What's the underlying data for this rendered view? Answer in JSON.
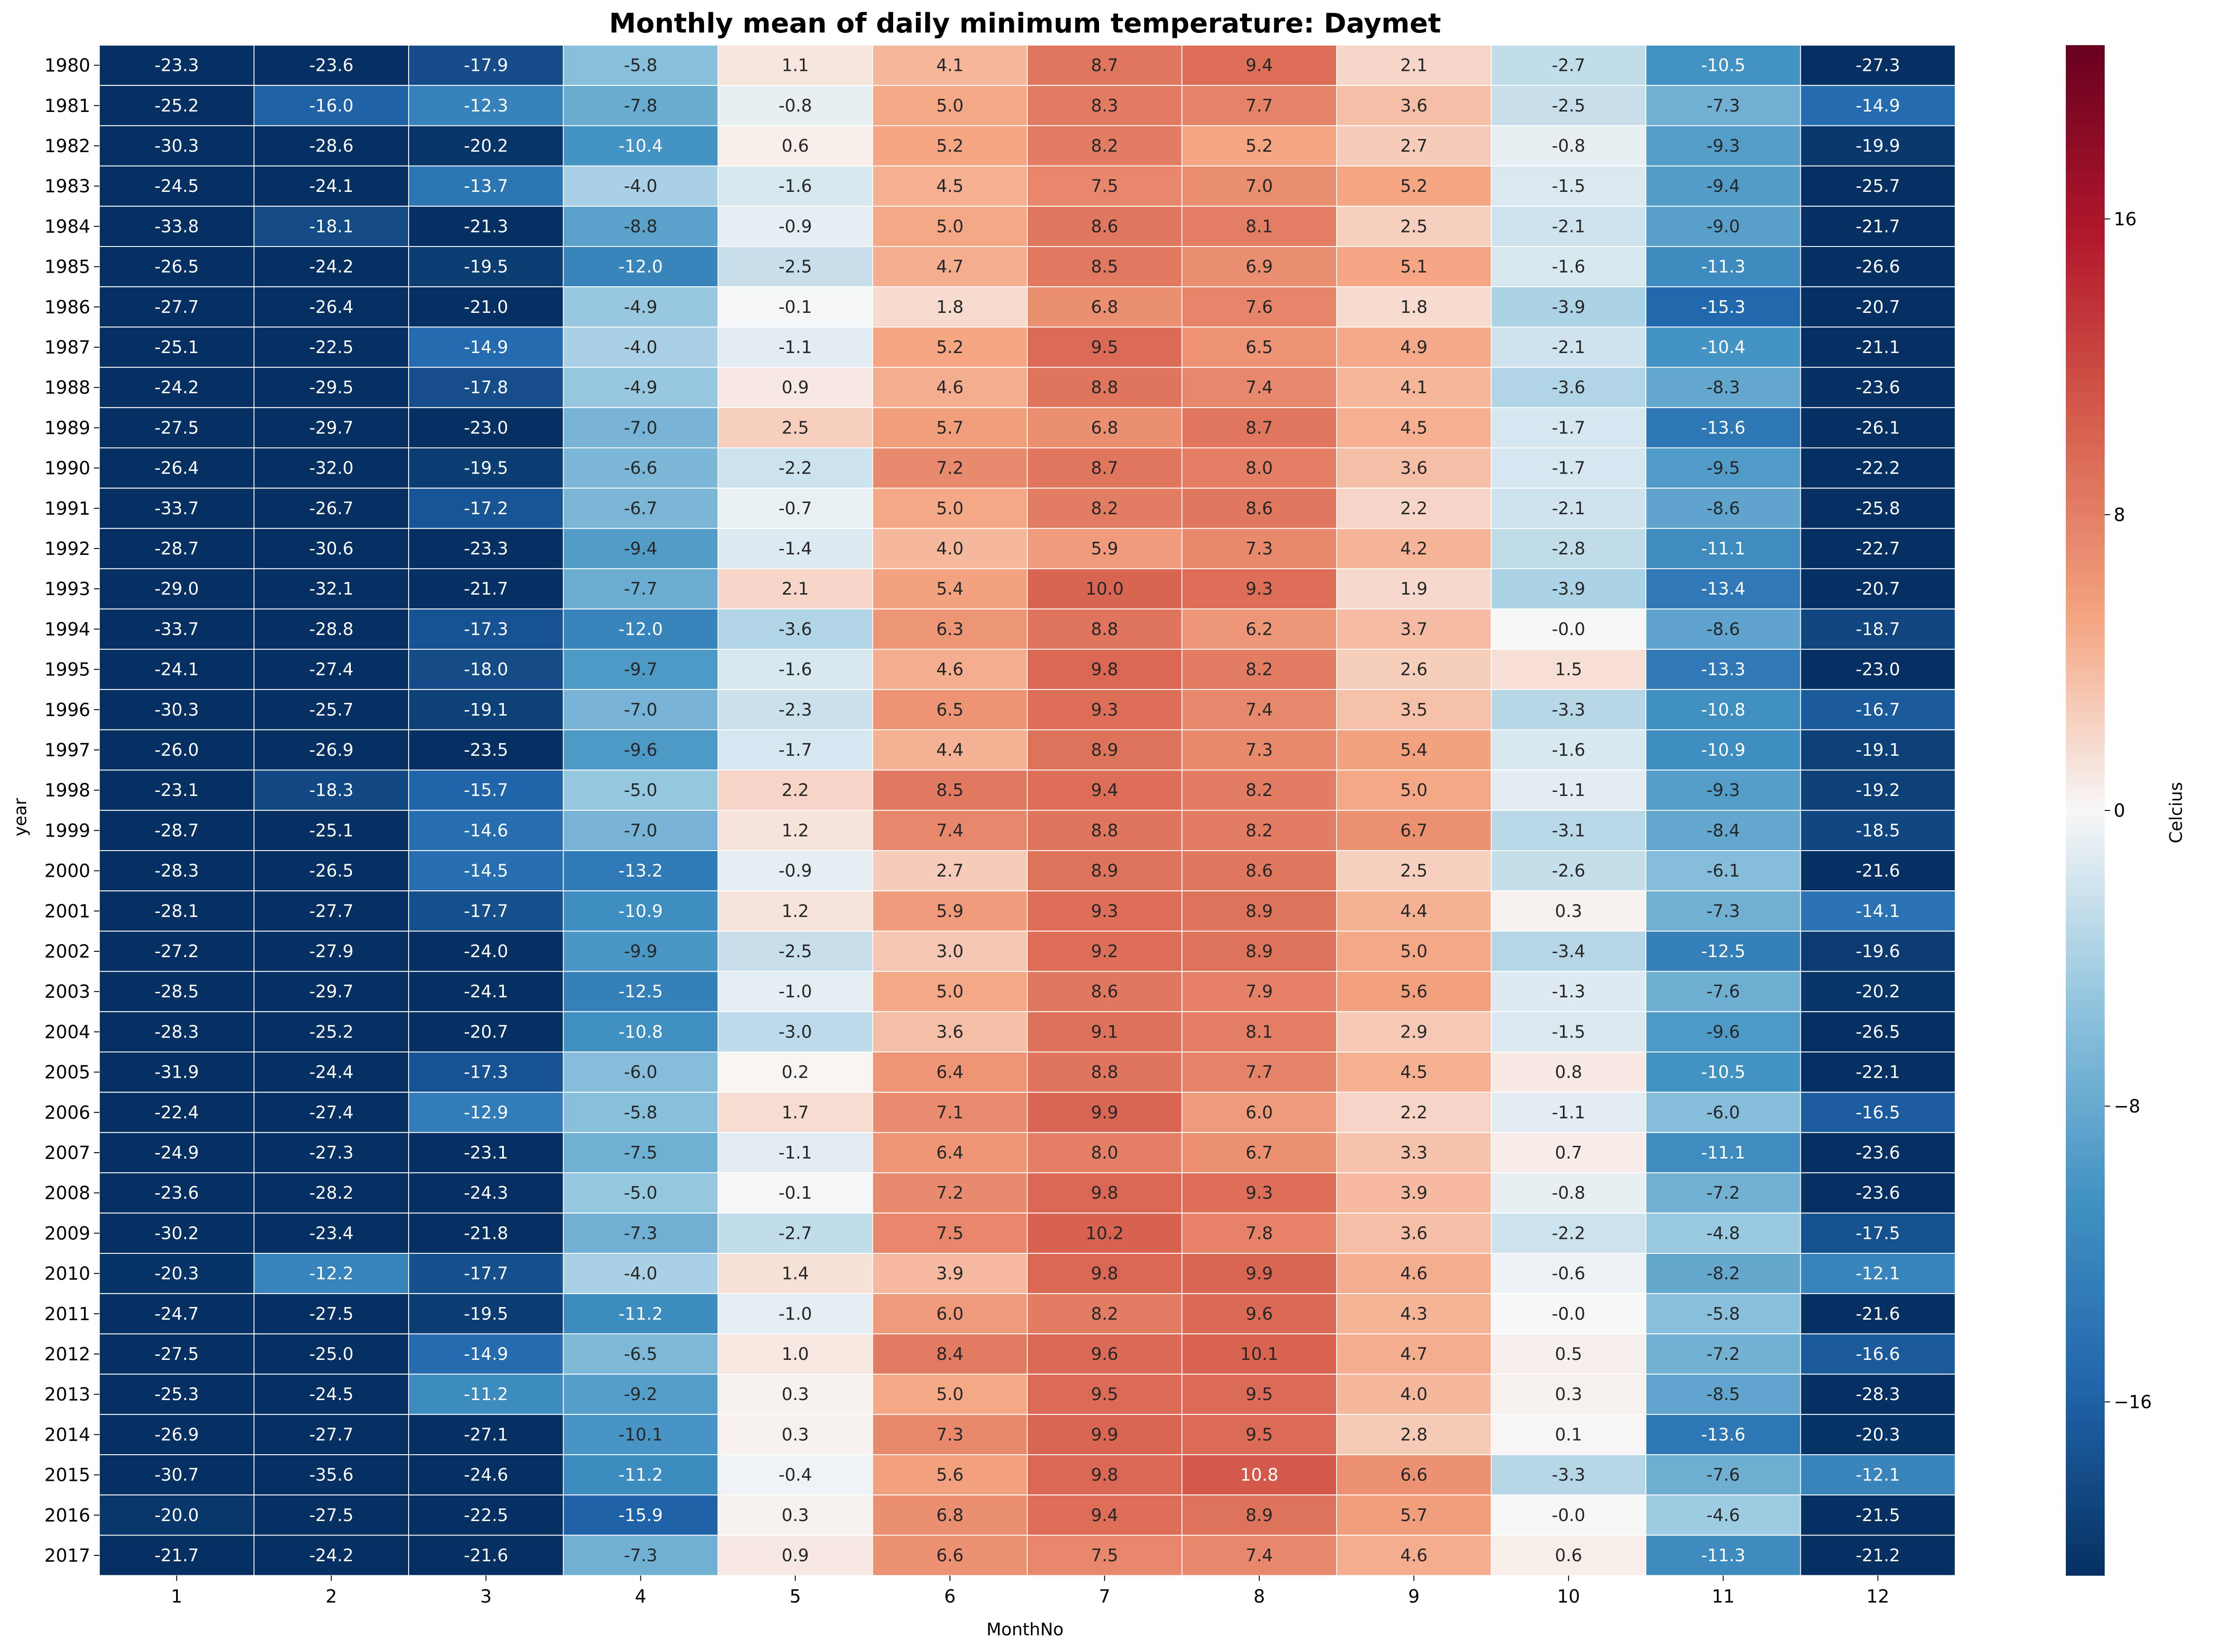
{
  "chart_data": {
    "type": "heatmap",
    "title": "Monthly mean of daily minimum temperature: Daymet",
    "xlabel": "MonthNo",
    "ylabel": "year",
    "colorbar_label": "Celcius",
    "colormap": "RdBu_r",
    "vmin": -20.7,
    "vmax": 20.7,
    "colorbar_ticks": [
      -16,
      -8,
      0,
      8,
      16
    ],
    "x_categories": [
      "1",
      "2",
      "3",
      "4",
      "5",
      "6",
      "7",
      "8",
      "9",
      "10",
      "11",
      "12"
    ],
    "y_categories": [
      "1980",
      "1981",
      "1982",
      "1983",
      "1984",
      "1985",
      "1986",
      "1987",
      "1988",
      "1989",
      "1990",
      "1991",
      "1992",
      "1993",
      "1994",
      "1995",
      "1996",
      "1997",
      "1998",
      "1999",
      "2000",
      "2001",
      "2002",
      "2003",
      "2004",
      "2005",
      "2006",
      "2007",
      "2008",
      "2009",
      "2010",
      "2011",
      "2012",
      "2013",
      "2014",
      "2015",
      "2016",
      "2017"
    ],
    "values": [
      [
        "-23.3",
        "-23.6",
        "-17.9",
        "-5.8",
        "1.1",
        "4.1",
        "8.7",
        "9.4",
        "2.1",
        "-2.7",
        "-10.5",
        "-27.3"
      ],
      [
        "-25.2",
        "-16.0",
        "-12.3",
        "-7.8",
        "-0.8",
        "5.0",
        "8.3",
        "7.7",
        "3.6",
        "-2.5",
        "-7.3",
        "-14.9"
      ],
      [
        "-30.3",
        "-28.6",
        "-20.2",
        "-10.4",
        "0.6",
        "5.2",
        "8.2",
        "5.2",
        "2.7",
        "-0.8",
        "-9.3",
        "-19.9"
      ],
      [
        "-24.5",
        "-24.1",
        "-13.7",
        "-4.0",
        "-1.6",
        "4.5",
        "7.5",
        "7.0",
        "5.2",
        "-1.5",
        "-9.4",
        "-25.7"
      ],
      [
        "-33.8",
        "-18.1",
        "-21.3",
        "-8.8",
        "-0.9",
        "5.0",
        "8.6",
        "8.1",
        "2.5",
        "-2.1",
        "-9.0",
        "-21.7"
      ],
      [
        "-26.5",
        "-24.2",
        "-19.5",
        "-12.0",
        "-2.5",
        "4.7",
        "8.5",
        "6.9",
        "5.1",
        "-1.6",
        "-11.3",
        "-26.6"
      ],
      [
        "-27.7",
        "-26.4",
        "-21.0",
        "-4.9",
        "-0.1",
        "1.8",
        "6.8",
        "7.6",
        "1.8",
        "-3.9",
        "-15.3",
        "-20.7"
      ],
      [
        "-25.1",
        "-22.5",
        "-14.9",
        "-4.0",
        "-1.1",
        "5.2",
        "9.5",
        "6.5",
        "4.9",
        "-2.1",
        "-10.4",
        "-21.1"
      ],
      [
        "-24.2",
        "-29.5",
        "-17.8",
        "-4.9",
        "0.9",
        "4.6",
        "8.8",
        "7.4",
        "4.1",
        "-3.6",
        "-8.3",
        "-23.6"
      ],
      [
        "-27.5",
        "-29.7",
        "-23.0",
        "-7.0",
        "2.5",
        "5.7",
        "6.8",
        "8.7",
        "4.5",
        "-1.7",
        "-13.6",
        "-26.1"
      ],
      [
        "-26.4",
        "-32.0",
        "-19.5",
        "-6.6",
        "-2.2",
        "7.2",
        "8.7",
        "8.0",
        "3.6",
        "-1.7",
        "-9.5",
        "-22.2"
      ],
      [
        "-33.7",
        "-26.7",
        "-17.2",
        "-6.7",
        "-0.7",
        "5.0",
        "8.2",
        "8.6",
        "2.2",
        "-2.1",
        "-8.6",
        "-25.8"
      ],
      [
        "-28.7",
        "-30.6",
        "-23.3",
        "-9.4",
        "-1.4",
        "4.0",
        "5.9",
        "7.3",
        "4.2",
        "-2.8",
        "-11.1",
        "-22.7"
      ],
      [
        "-29.0",
        "-32.1",
        "-21.7",
        "-7.7",
        "2.1",
        "5.4",
        "10.0",
        "9.3",
        "1.9",
        "-3.9",
        "-13.4",
        "-20.7"
      ],
      [
        "-33.7",
        "-28.8",
        "-17.3",
        "-12.0",
        "-3.6",
        "6.3",
        "8.8",
        "6.2",
        "3.7",
        "-0.0",
        "-8.6",
        "-18.7"
      ],
      [
        "-24.1",
        "-27.4",
        "-18.0",
        "-9.7",
        "-1.6",
        "4.6",
        "9.8",
        "8.2",
        "2.6",
        "1.5",
        "-13.3",
        "-23.0"
      ],
      [
        "-30.3",
        "-25.7",
        "-19.1",
        "-7.0",
        "-2.3",
        "6.5",
        "9.3",
        "7.4",
        "3.5",
        "-3.3",
        "-10.8",
        "-16.7"
      ],
      [
        "-26.0",
        "-26.9",
        "-23.5",
        "-9.6",
        "-1.7",
        "4.4",
        "8.9",
        "7.3",
        "5.4",
        "-1.6",
        "-10.9",
        "-19.1"
      ],
      [
        "-23.1",
        "-18.3",
        "-15.7",
        "-5.0",
        "2.2",
        "8.5",
        "9.4",
        "8.2",
        "5.0",
        "-1.1",
        "-9.3",
        "-19.2"
      ],
      [
        "-28.7",
        "-25.1",
        "-14.6",
        "-7.0",
        "1.2",
        "7.4",
        "8.8",
        "8.2",
        "6.7",
        "-3.1",
        "-8.4",
        "-18.5"
      ],
      [
        "-28.3",
        "-26.5",
        "-14.5",
        "-13.2",
        "-0.9",
        "2.7",
        "8.9",
        "8.6",
        "2.5",
        "-2.6",
        "-6.1",
        "-21.6"
      ],
      [
        "-28.1",
        "-27.7",
        "-17.7",
        "-10.9",
        "1.2",
        "5.9",
        "9.3",
        "8.9",
        "4.4",
        "0.3",
        "-7.3",
        "-14.1"
      ],
      [
        "-27.2",
        "-27.9",
        "-24.0",
        "-9.9",
        "-2.5",
        "3.0",
        "9.2",
        "8.9",
        "5.0",
        "-3.4",
        "-12.5",
        "-19.6"
      ],
      [
        "-28.5",
        "-29.7",
        "-24.1",
        "-12.5",
        "-1.0",
        "5.0",
        "8.6",
        "7.9",
        "5.6",
        "-1.3",
        "-7.6",
        "-20.2"
      ],
      [
        "-28.3",
        "-25.2",
        "-20.7",
        "-10.8",
        "-3.0",
        "3.6",
        "9.1",
        "8.1",
        "2.9",
        "-1.5",
        "-9.6",
        "-26.5"
      ],
      [
        "-31.9",
        "-24.4",
        "-17.3",
        "-6.0",
        "0.2",
        "6.4",
        "8.8",
        "7.7",
        "4.5",
        "0.8",
        "-10.5",
        "-22.1"
      ],
      [
        "-22.4",
        "-27.4",
        "-12.9",
        "-5.8",
        "1.7",
        "7.1",
        "9.9",
        "6.0",
        "2.2",
        "-1.1",
        "-6.0",
        "-16.5"
      ],
      [
        "-24.9",
        "-27.3",
        "-23.1",
        "-7.5",
        "-1.1",
        "6.4",
        "8.0",
        "6.7",
        "3.3",
        "0.7",
        "-11.1",
        "-23.6"
      ],
      [
        "-23.6",
        "-28.2",
        "-24.3",
        "-5.0",
        "-0.1",
        "7.2",
        "9.8",
        "9.3",
        "3.9",
        "-0.8",
        "-7.2",
        "-23.6"
      ],
      [
        "-30.2",
        "-23.4",
        "-21.8",
        "-7.3",
        "-2.7",
        "7.5",
        "10.2",
        "7.8",
        "3.6",
        "-2.2",
        "-4.8",
        "-17.5"
      ],
      [
        "-20.3",
        "-12.2",
        "-17.7",
        "-4.0",
        "1.4",
        "3.9",
        "9.8",
        "9.9",
        "4.6",
        "-0.6",
        "-8.2",
        "-12.1"
      ],
      [
        "-24.7",
        "-27.5",
        "-19.5",
        "-11.2",
        "-1.0",
        "6.0",
        "8.2",
        "9.6",
        "4.3",
        "-0.0",
        "-5.8",
        "-21.6"
      ],
      [
        "-27.5",
        "-25.0",
        "-14.9",
        "-6.5",
        "1.0",
        "8.4",
        "9.6",
        "10.1",
        "4.7",
        "0.5",
        "-7.2",
        "-16.6"
      ],
      [
        "-25.3",
        "-24.5",
        "-11.2",
        "-9.2",
        "0.3",
        "5.0",
        "9.5",
        "9.5",
        "4.0",
        "0.3",
        "-8.5",
        "-28.3"
      ],
      [
        "-26.9",
        "-27.7",
        "-27.1",
        "-10.1",
        "0.3",
        "7.3",
        "9.9",
        "9.5",
        "2.8",
        "0.1",
        "-13.6",
        "-20.3"
      ],
      [
        "-30.7",
        "-35.6",
        "-24.6",
        "-11.2",
        "-0.4",
        "5.6",
        "9.8",
        "10.8",
        "6.6",
        "-3.3",
        "-7.6",
        "-12.1"
      ],
      [
        "-20.0",
        "-27.5",
        "-22.5",
        "-15.9",
        "0.3",
        "6.8",
        "9.4",
        "8.9",
        "5.7",
        "-0.0",
        "-4.6",
        "-21.5"
      ],
      [
        "-21.7",
        "-24.2",
        "-21.6",
        "-7.3",
        "0.9",
        "6.6",
        "7.5",
        "7.4",
        "4.6",
        "0.6",
        "-11.3",
        "-21.2"
      ]
    ]
  }
}
